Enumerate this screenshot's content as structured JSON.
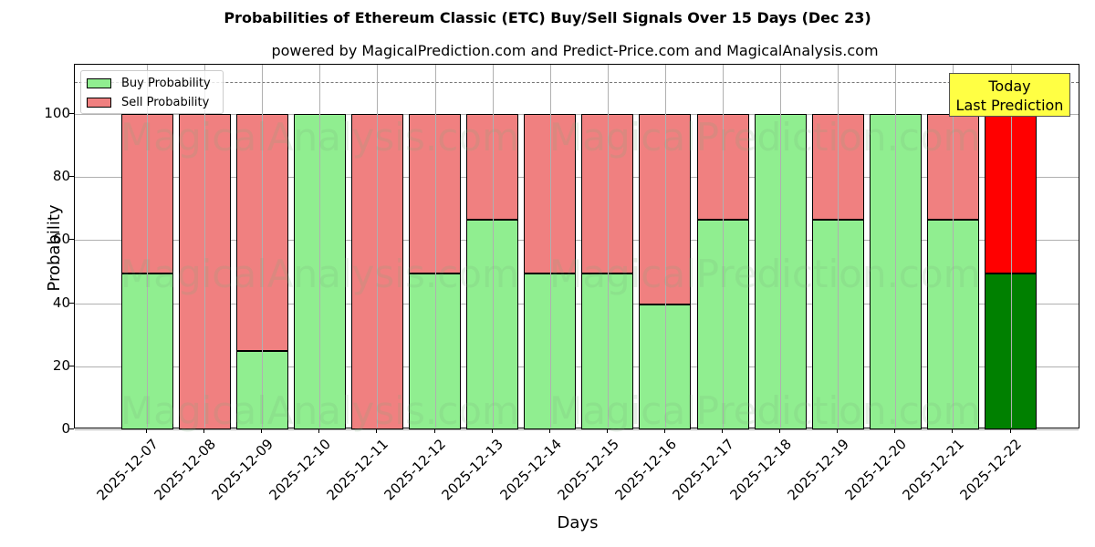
{
  "chart_data": {
    "type": "bar",
    "stacked": true,
    "title": "Probabilities of Ethereum Classic (ETC) Buy/Sell Signals Over 15 Days (Dec 23)",
    "subtitle": "powered by MagicalPrediction.com and Predict-Price.com and MagicalAnalysis.com",
    "xlabel": "Days",
    "ylabel": "Probability",
    "ylim": [
      0,
      115
    ],
    "yticks": [
      0,
      20,
      40,
      60,
      80,
      100
    ],
    "grid": true,
    "legend_position": "upper left",
    "reference_line": {
      "y": 110,
      "style": "dashed"
    },
    "categories": [
      "2025-12-07",
      "2025-12-08",
      "2025-12-09",
      "2025-12-10",
      "2025-12-11",
      "2025-12-12",
      "2025-12-13",
      "2025-12-14",
      "2025-12-15",
      "2025-12-16",
      "2025-12-17",
      "2025-12-18",
      "2025-12-19",
      "2025-12-20",
      "2025-12-21",
      "2025-12-22"
    ],
    "series": [
      {
        "name": "Buy Probability",
        "color": "#90ee90",
        "values": [
          49.5,
          0,
          25,
          100,
          0,
          49.5,
          66.5,
          49.5,
          49.5,
          39.5,
          66.5,
          100,
          66.5,
          100,
          66.5,
          49.5
        ]
      },
      {
        "name": "Sell Probability",
        "color": "#f08080",
        "values": [
          50.5,
          100,
          75,
          0,
          100,
          50.5,
          33.5,
          50.5,
          50.5,
          60.5,
          33.5,
          0,
          33.5,
          0,
          33.5,
          50.5
        ]
      }
    ],
    "highlight": {
      "index": 15,
      "buy_color": "#008000",
      "sell_color": "#ff0000"
    },
    "annotation": "Today\nLast Prediction"
  },
  "legend": {
    "buy": "Buy Probability",
    "sell": "Sell Probability"
  },
  "annotation": {
    "line1": "Today",
    "line2": "Last Prediction"
  },
  "watermarks": [
    "MagicalAnalysis.com",
    "MagicalPrediction.com"
  ]
}
